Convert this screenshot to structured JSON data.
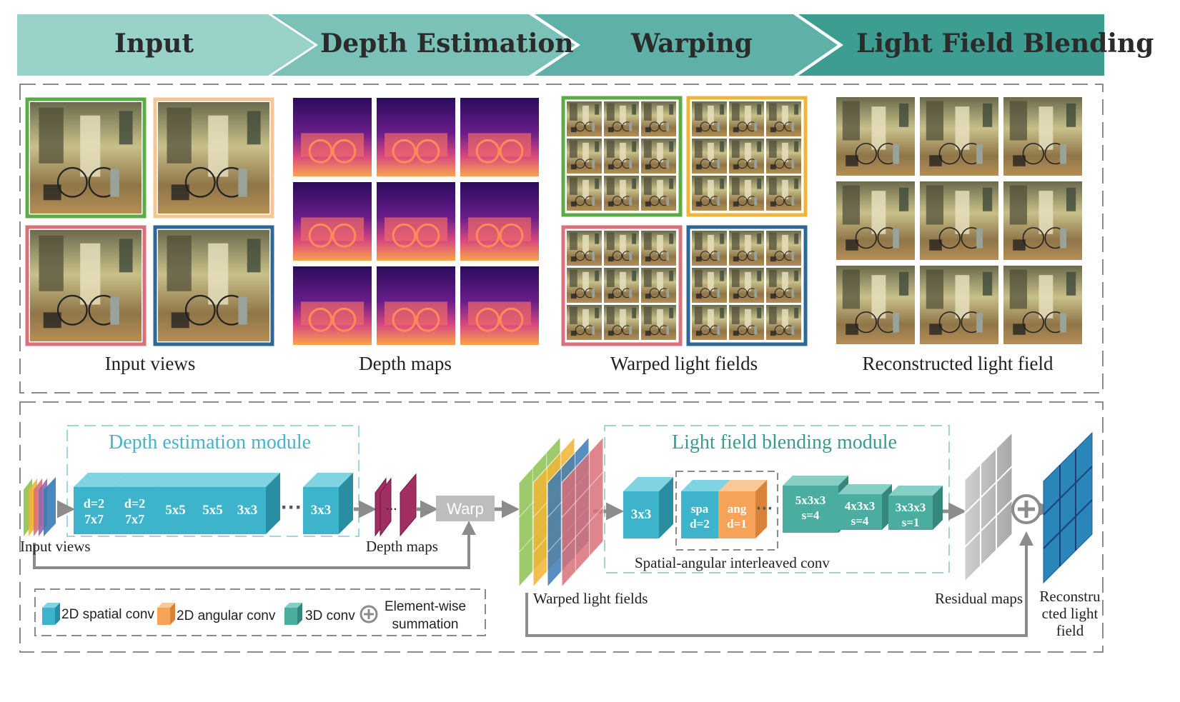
{
  "pipeline_stages": [
    "Input",
    "Depth Estimation",
    "Warping",
    "Light Field Blending"
  ],
  "captions": {
    "input_views": "Input views",
    "depth_maps": "Depth maps",
    "warped_light_fields": "Warped light fields",
    "reconstructed_light_field": "Reconstructed light field"
  },
  "network": {
    "depth_module_title": "Depth estimation module",
    "blending_module_title": "Light field blending module",
    "input_label": "Input views",
    "depth_maps_label": "Depth maps",
    "warp_label": "Warp",
    "warped_label": "Warped light fields",
    "interleaved_label": "Spatial-angular interleaved conv",
    "residual_label": "Residual maps",
    "recon_label_lines": [
      "Reconstru",
      "cted light",
      "field"
    ],
    "depth_blocks": [
      {
        "line1": "d=2",
        "line2": "7x7"
      },
      {
        "line1": "d=2",
        "line2": "7x7"
      },
      {
        "line1": "5x5",
        "line2": ""
      },
      {
        "line1": "5x5",
        "line2": ""
      },
      {
        "line1": "3x3",
        "line2": ""
      },
      {
        "line1": "3x3",
        "line2": ""
      }
    ],
    "blend_blocks": {
      "first": "3x3",
      "spa": [
        "spa",
        "d=2"
      ],
      "ang": [
        "ang",
        "d=1"
      ],
      "conv3d": [
        [
          "5x3x3",
          "s=4"
        ],
        [
          "4x3x3",
          "s=4"
        ],
        [
          "3x3x3",
          "s=1"
        ]
      ]
    }
  },
  "legend": {
    "spatial": "2D spatial conv",
    "angular": "2D angular conv",
    "conv3d": "3D conv",
    "sum_lines": [
      "Element-wise",
      "summation"
    ]
  },
  "colors": {
    "stage_banner": [
      "#98d2c8",
      "#7cc1b8",
      "#5fb1a7",
      "#3e9d91"
    ],
    "view_borders": [
      "#5cab46",
      "#f7c495",
      "#d9707a",
      "#2e6795"
    ],
    "warp_borders": [
      "#5cab46",
      "#f0b534",
      "#d9707a",
      "#2e6795"
    ],
    "spatial_conv": "#3db4cc",
    "angular_conv": "#f7a35a",
    "conv_3d": "#4aada0",
    "depth_title": "#45b3c9",
    "blend_title": "#3a9a8e",
    "depth_map_block": "#8a2050",
    "recon_block": "#2a86b9",
    "warp_block": "#bdbdbd"
  }
}
